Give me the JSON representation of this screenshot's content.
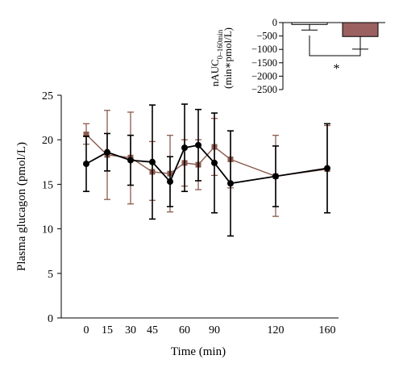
{
  "chart_data": [
    {
      "type": "line",
      "xlabel": "Time (min)",
      "ylabel": "Plasma glucagon (pmol/L)",
      "x_ticks": [
        0,
        15,
        30,
        45,
        60,
        90,
        120,
        160
      ],
      "ylim": [
        0,
        25
      ],
      "y_ticks": [
        0,
        5,
        10,
        15,
        20,
        25
      ],
      "grid": false,
      "series": [
        {
          "color": "#8B5A4E",
          "marker": "square",
          "points": [
            {
              "x": 0,
              "y": 20.6,
              "lo": 19.5,
              "hi": 21.8
            },
            {
              "x": 15,
              "y": 18.3,
              "lo": 13.3,
              "hi": 23.3
            },
            {
              "x": 30,
              "y": 18.0,
              "lo": 12.8,
              "hi": 23.1
            },
            {
              "x": 45,
              "y": 16.4,
              "lo": 13.2,
              "hi": 19.8
            },
            {
              "x": 52,
              "y": 16.2,
              "lo": 11.9,
              "hi": 20.5
            },
            {
              "x": 60,
              "y": 17.4,
              "lo": 14.8,
              "hi": 20.0
            },
            {
              "x": 75,
              "y": 17.2,
              "lo": 14.4,
              "hi": 20.0
            },
            {
              "x": 90,
              "y": 19.2,
              "lo": 16.0,
              "hi": 22.4
            },
            {
              "x": 100,
              "y": 17.8,
              "lo": 14.6,
              "hi": 21.0
            },
            {
              "x": 120,
              "y": 15.9,
              "lo": 11.4,
              "hi": 20.5
            },
            {
              "x": 160,
              "y": 16.7,
              "lo": 11.8,
              "hi": 21.6
            }
          ]
        },
        {
          "color": "#000000",
          "marker": "circle",
          "points": [
            {
              "x": 0,
              "y": 17.3,
              "lo": 14.2,
              "hi": 20.4
            },
            {
              "x": 15,
              "y": 18.6,
              "lo": 16.5,
              "hi": 20.7
            },
            {
              "x": 30,
              "y": 17.7,
              "lo": 14.9,
              "hi": 20.5
            },
            {
              "x": 45,
              "y": 17.5,
              "lo": 11.1,
              "hi": 23.9
            },
            {
              "x": 52,
              "y": 15.3,
              "lo": 12.5,
              "hi": 18.1
            },
            {
              "x": 60,
              "y": 19.1,
              "lo": 14.2,
              "hi": 24.0
            },
            {
              "x": 75,
              "y": 19.4,
              "lo": 15.4,
              "hi": 23.4
            },
            {
              "x": 90,
              "y": 17.4,
              "lo": 11.8,
              "hi": 23.0
            },
            {
              "x": 100,
              "y": 15.1,
              "lo": 9.2,
              "hi": 21.0
            },
            {
              "x": 120,
              "y": 15.9,
              "lo": 12.5,
              "hi": 19.3
            },
            {
              "x": 160,
              "y": 16.8,
              "lo": 11.8,
              "hi": 21.8
            }
          ]
        }
      ]
    },
    {
      "type": "bar",
      "ylabel_line1": "nAUC",
      "ylabel_sub": "0–160min",
      "ylabel_line2": "(min∗pmol/L)",
      "ylim": [
        -2500,
        0
      ],
      "y_ticks": [
        0,
        -500,
        -1000,
        -1500,
        -2000,
        -2500
      ],
      "grid": false,
      "bars": [
        {
          "value": -70,
          "error": 210,
          "color": "#FFFFFF"
        },
        {
          "value": -520,
          "error": 470,
          "color": "#9B6060"
        }
      ],
      "significance": "*"
    }
  ]
}
